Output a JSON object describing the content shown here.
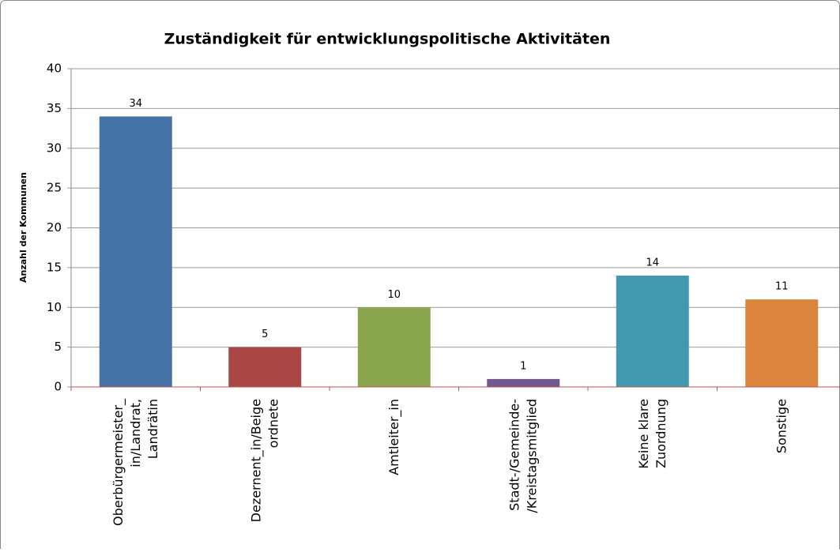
{
  "chart_data": {
    "type": "bar",
    "title": "Zuständigkeit für entwicklungspolitische Aktivitäten",
    "y_label": "Anzahl der Kommunen",
    "categories": [
      "Oberbürgermeister_\nin/Landrat,\nLandrätin",
      "Dezernent_in/Beige\nordnete",
      "Amtleiter_in",
      "Stadt-/Gemeinde-\n/Kreistagsmitglied",
      "Keine klare\nZuordnung",
      "Sonstige"
    ],
    "values": [
      34,
      5,
      10,
      1,
      14,
      11
    ],
    "colors": [
      "#4572a7",
      "#aa4643",
      "#89a54e",
      "#71588f",
      "#4198af",
      "#db843d"
    ],
    "ylim": [
      0,
      40
    ],
    "yticks": [
      0,
      5,
      10,
      15,
      20,
      25,
      30,
      35,
      40
    ],
    "grid": true
  }
}
